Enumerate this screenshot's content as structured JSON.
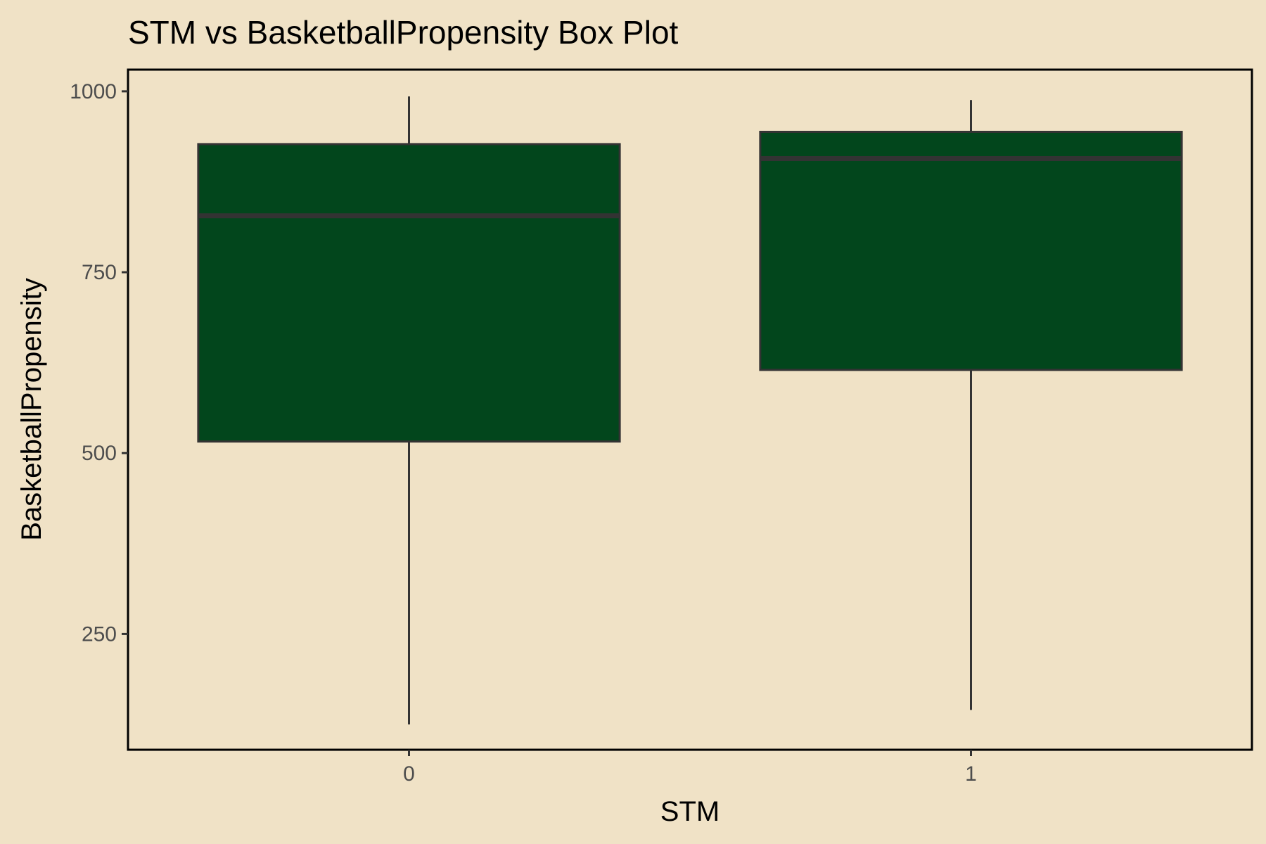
{
  "chart_data": {
    "type": "box",
    "title": "STM vs BasketballPropensity Box Plot",
    "xlabel": "STM",
    "ylabel": "BasketballPropensity",
    "ylim": [
      90,
      1030
    ],
    "yticks": [
      250,
      500,
      750,
      1000
    ],
    "categories": [
      "0",
      "1"
    ],
    "boxes": [
      {
        "category": "0",
        "whisker_low": 125,
        "q1": 516,
        "median": 828,
        "q3": 927,
        "whisker_high": 993
      },
      {
        "category": "1",
        "whisker_low": 145,
        "q1": 615,
        "median": 907,
        "q3": 944,
        "whisker_high": 988
      }
    ],
    "grid": false,
    "legend": "none",
    "colors": {
      "background": "#F0E2C6",
      "box_fill": "#02461C",
      "box_line": "#333333",
      "panel_border": "#000000"
    }
  }
}
